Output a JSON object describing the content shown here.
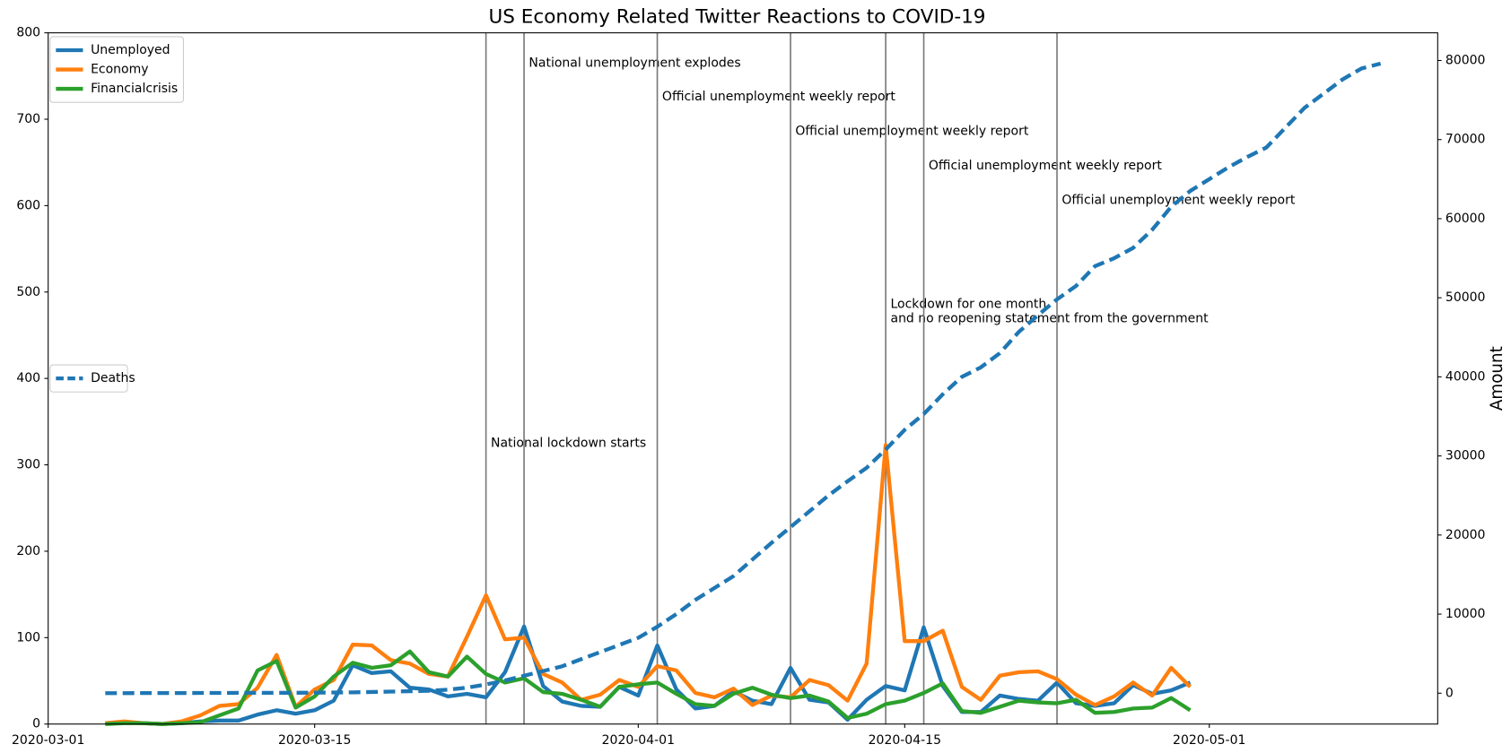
{
  "chart_data": {
    "type": "line",
    "title": "US Economy Related Twitter Reactions to COVID-19",
    "y2label": "Amount",
    "x": [
      "2020-03-04",
      "2020-03-05",
      "2020-03-06",
      "2020-03-07",
      "2020-03-08",
      "2020-03-09",
      "2020-03-10",
      "2020-03-11",
      "2020-03-12",
      "2020-03-13",
      "2020-03-14",
      "2020-03-15",
      "2020-03-16",
      "2020-03-17",
      "2020-03-18",
      "2020-03-19",
      "2020-03-20",
      "2020-03-21",
      "2020-03-22",
      "2020-03-23",
      "2020-03-24",
      "2020-03-25",
      "2020-03-26",
      "2020-03-27",
      "2020-03-28",
      "2020-03-29",
      "2020-03-30",
      "2020-03-31",
      "2020-04-01",
      "2020-04-02",
      "2020-04-03",
      "2020-04-04",
      "2020-04-05",
      "2020-04-06",
      "2020-04-07",
      "2020-04-08",
      "2020-04-09",
      "2020-04-10",
      "2020-04-11",
      "2020-04-12",
      "2020-04-13",
      "2020-04-14",
      "2020-04-15",
      "2020-04-16",
      "2020-04-17",
      "2020-04-18",
      "2020-04-19",
      "2020-04-20",
      "2020-04-21",
      "2020-04-22",
      "2020-04-23",
      "2020-04-24",
      "2020-04-25",
      "2020-04-26",
      "2020-04-27",
      "2020-04-28",
      "2020-04-29",
      "2020-04-30",
      "2020-05-01",
      "2020-05-02",
      "2020-05-03",
      "2020-05-04",
      "2020-05-05",
      "2020-05-06",
      "2020-05-07",
      "2020-05-08",
      "2020-05-09",
      "2020-05-10"
    ],
    "series": [
      {
        "name": "Unemployed",
        "color": "#1f77b4",
        "legend": 1,
        "values": [
          1,
          2,
          1,
          0,
          1,
          3,
          4,
          4,
          11,
          16,
          12,
          16,
          27,
          68,
          59,
          61,
          42,
          40,
          32,
          35,
          31,
          60,
          113,
          44,
          26,
          21,
          20,
          43,
          33,
          91,
          40,
          18,
          21,
          38,
          27,
          23,
          65,
          28,
          25,
          5,
          28,
          44,
          39,
          112,
          44,
          14,
          14,
          33,
          29,
          27,
          48,
          24,
          21,
          24,
          45,
          35,
          39,
          48,
          null,
          null,
          null,
          null,
          null,
          null,
          null,
          null,
          null,
          null
        ]
      },
      {
        "name": "Economy",
        "color": "#ff7f0e",
        "legend": 1,
        "values": [
          1,
          3,
          1,
          0,
          3,
          10,
          21,
          23,
          42,
          80,
          20,
          40,
          51,
          92,
          91,
          74,
          70,
          58,
          55,
          101,
          149,
          98,
          100,
          58,
          48,
          28,
          34,
          51,
          43,
          67,
          62,
          36,
          31,
          41,
          22,
          33,
          31,
          51,
          45,
          27,
          70,
          323,
          96,
          96,
          108,
          43,
          28,
          56,
          60,
          61,
          52,
          34,
          22,
          32,
          48,
          33,
          65,
          43,
          null,
          null,
          null,
          null,
          null,
          null,
          null,
          null,
          null,
          null
        ]
      },
      {
        "name": "Financialcrisis",
        "color": "#2ca02c",
        "legend": 1,
        "values": [
          0,
          1,
          1,
          0,
          1,
          2,
          10,
          18,
          62,
          73,
          19,
          32,
          55,
          71,
          65,
          68,
          84,
          60,
          55,
          78,
          58,
          48,
          53,
          37,
          35,
          28,
          20,
          43,
          46,
          48,
          35,
          23,
          21,
          35,
          42,
          34,
          30,
          33,
          26,
          7,
          12,
          23,
          27,
          36,
          47,
          15,
          13,
          20,
          27,
          25,
          24,
          28,
          13,
          14,
          18,
          19,
          30,
          16,
          null,
          null,
          null,
          null,
          null,
          null,
          null,
          null,
          null,
          null
        ]
      },
      {
        "name": "Deaths",
        "color": "#1f77b4",
        "legend": 2,
        "dashed": true,
        "axis": "y2",
        "values": [
          10,
          12,
          15,
          19,
          22,
          26,
          30,
          38,
          41,
          48,
          57,
          68,
          86,
          109,
          150,
          206,
          255,
          300,
          450,
          700,
          1100,
          1600,
          2200,
          2800,
          3400,
          4300,
          5200,
          6100,
          7000,
          8400,
          10000,
          11800,
          13300,
          14800,
          16900,
          19000,
          21000,
          23000,
          25000,
          26800,
          28500,
          30800,
          33300,
          35300,
          37800,
          40000,
          41200,
          43000,
          45700,
          47800,
          49800,
          51500,
          54000,
          55000,
          56300,
          58600,
          61500,
          63500,
          65000,
          66500,
          67800,
          69000,
          71500,
          74000,
          75800,
          77600,
          79000,
          79600
        ]
      }
    ],
    "annotations": [
      {
        "x": "2020-03-24",
        "y": 325,
        "text": [
          "National lockdown starts"
        ]
      },
      {
        "x": "2020-03-26",
        "y": 765,
        "text": [
          "National unemployment explodes"
        ]
      },
      {
        "x": "2020-04-02",
        "y": 726,
        "text": [
          "Official unemployment weekly report"
        ]
      },
      {
        "x": "2020-04-09",
        "y": 686,
        "text": [
          "Official unemployment weekly report"
        ]
      },
      {
        "x": "2020-04-14",
        "y": 486,
        "text": [
          "Lockdown for one month",
          "and no reopening statement from the government"
        ]
      },
      {
        "x": "2020-04-16",
        "y": 646,
        "text": [
          "Official unemployment weekly report"
        ]
      },
      {
        "x": "2020-04-23",
        "y": 606,
        "text": [
          "Official unemployment weekly report"
        ]
      }
    ],
    "xlim": [
      "2020-03-01",
      "2020-05-13"
    ],
    "xticks": [
      "2020-03-01",
      "2020-03-15",
      "2020-04-01",
      "2020-04-15",
      "2020-05-01"
    ],
    "ylim": [
      0,
      800
    ],
    "yticks": [
      0,
      100,
      200,
      300,
      400,
      500,
      600,
      700,
      800
    ],
    "y2lim": [
      -3900,
      83500
    ],
    "y2ticks": [
      0,
      10000,
      20000,
      30000,
      40000,
      50000,
      60000,
      70000,
      80000
    ],
    "legend_loc": "upper left",
    "legend2_loc": "center left"
  }
}
